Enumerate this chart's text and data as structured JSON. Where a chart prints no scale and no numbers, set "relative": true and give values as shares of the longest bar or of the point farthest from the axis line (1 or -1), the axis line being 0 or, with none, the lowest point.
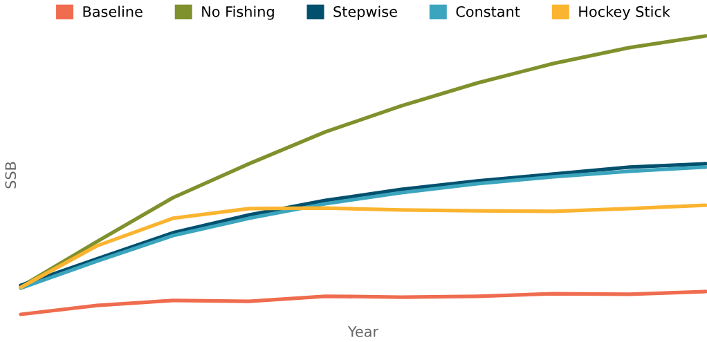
{
  "chart_data": {
    "type": "line",
    "relative": true,
    "xlabel": "Year",
    "ylabel": "SSB",
    "legend": "top",
    "grid": false,
    "tick_labels": false,
    "categories": [
      null,
      null,
      null,
      null,
      null,
      null,
      null,
      null,
      null,
      null
    ],
    "series": [
      {
        "name": "Baseline",
        "color": "#ef6c4f",
        "values": [
          0,
          0.032,
          0.05,
          0.047,
          0.065,
          0.062,
          0.065,
          0.074,
          0.072,
          0.082
        ]
      },
      {
        "name": "No Fishing",
        "color": "#7f912c",
        "values": [
          0.099,
          0.261,
          0.419,
          0.541,
          0.655,
          0.749,
          0.831,
          0.901,
          0.958,
          1.0
        ]
      },
      {
        "name": "Stepwise",
        "color": "#00506e",
        "values": [
          0.104,
          0.199,
          0.293,
          0.357,
          0.409,
          0.449,
          0.479,
          0.504,
          0.529,
          0.541
        ]
      },
      {
        "name": "Constant",
        "color": "#3ba5bd",
        "values": [
          0.094,
          0.191,
          0.283,
          0.345,
          0.397,
          0.437,
          0.469,
          0.494,
          0.514,
          0.529
        ]
      },
      {
        "name": "Hockey Stick",
        "color": "#fbb430",
        "values": [
          0.097,
          0.246,
          0.345,
          0.38,
          0.382,
          0.375,
          0.372,
          0.37,
          0.38,
          0.392
        ]
      }
    ]
  }
}
